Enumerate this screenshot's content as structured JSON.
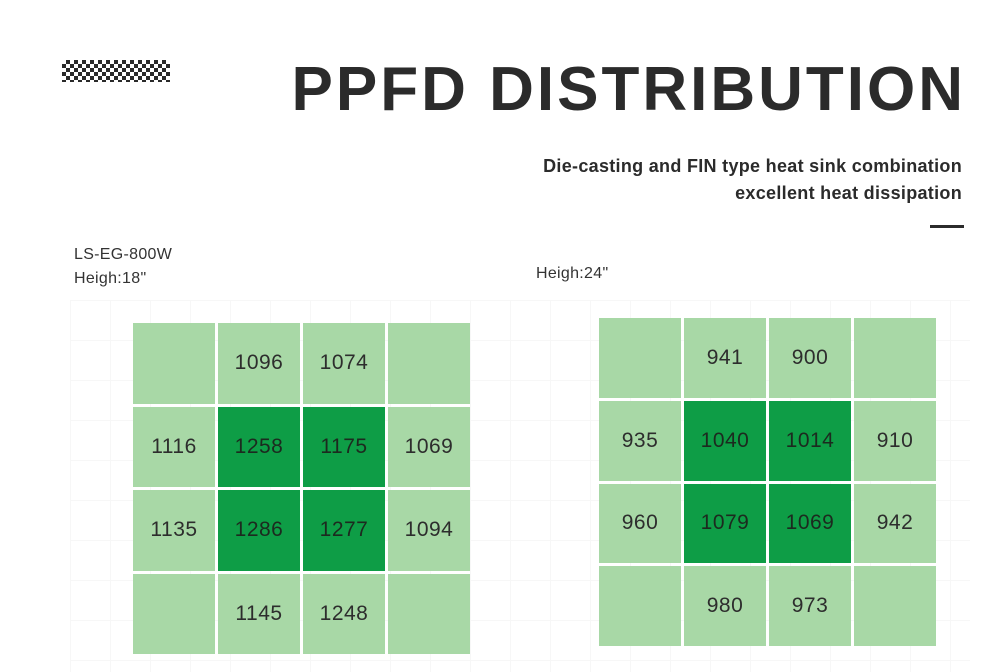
{
  "header": {
    "title": "PPFD DISTRIBUTION",
    "subtitle_line1": "Die-casting and FIN type heat sink combination",
    "subtitle_line2": "excellent heat dissipation"
  },
  "left_panel": {
    "model": "LS-EG-800W",
    "height_label": "Heigh:18\"",
    "cells": [
      {
        "value": "",
        "shade": "light"
      },
      {
        "value": "1096",
        "shade": "light"
      },
      {
        "value": "1074",
        "shade": "light"
      },
      {
        "value": "",
        "shade": "light"
      },
      {
        "value": "1116",
        "shade": "light"
      },
      {
        "value": "1258",
        "shade": "dark"
      },
      {
        "value": "1175",
        "shade": "dark"
      },
      {
        "value": "1069",
        "shade": "light"
      },
      {
        "value": "1135",
        "shade": "light"
      },
      {
        "value": "1286",
        "shade": "dark"
      },
      {
        "value": "1277",
        "shade": "dark"
      },
      {
        "value": "1094",
        "shade": "light"
      },
      {
        "value": "",
        "shade": "light"
      },
      {
        "value": "1145",
        "shade": "light"
      },
      {
        "value": "1248",
        "shade": "light"
      },
      {
        "value": "",
        "shade": "light"
      }
    ]
  },
  "right_panel": {
    "height_label": "Heigh:24\"",
    "cells": [
      {
        "value": "",
        "shade": "light"
      },
      {
        "value": "941",
        "shade": "light"
      },
      {
        "value": "900",
        "shade": "light"
      },
      {
        "value": "",
        "shade": "light"
      },
      {
        "value": "935",
        "shade": "light"
      },
      {
        "value": "1040",
        "shade": "dark"
      },
      {
        "value": "1014",
        "shade": "dark"
      },
      {
        "value": "910",
        "shade": "light"
      },
      {
        "value": "960",
        "shade": "light"
      },
      {
        "value": "1079",
        "shade": "dark"
      },
      {
        "value": "1069",
        "shade": "dark"
      },
      {
        "value": "942",
        "shade": "light"
      },
      {
        "value": "",
        "shade": "light"
      },
      {
        "value": "980",
        "shade": "light"
      },
      {
        "value": "973",
        "shade": "light"
      },
      {
        "value": "",
        "shade": "light"
      }
    ]
  },
  "colors": {
    "light_cell": "#a8d8a6",
    "dark_cell": "#0e9d46",
    "text": "#2b2b2b"
  }
}
